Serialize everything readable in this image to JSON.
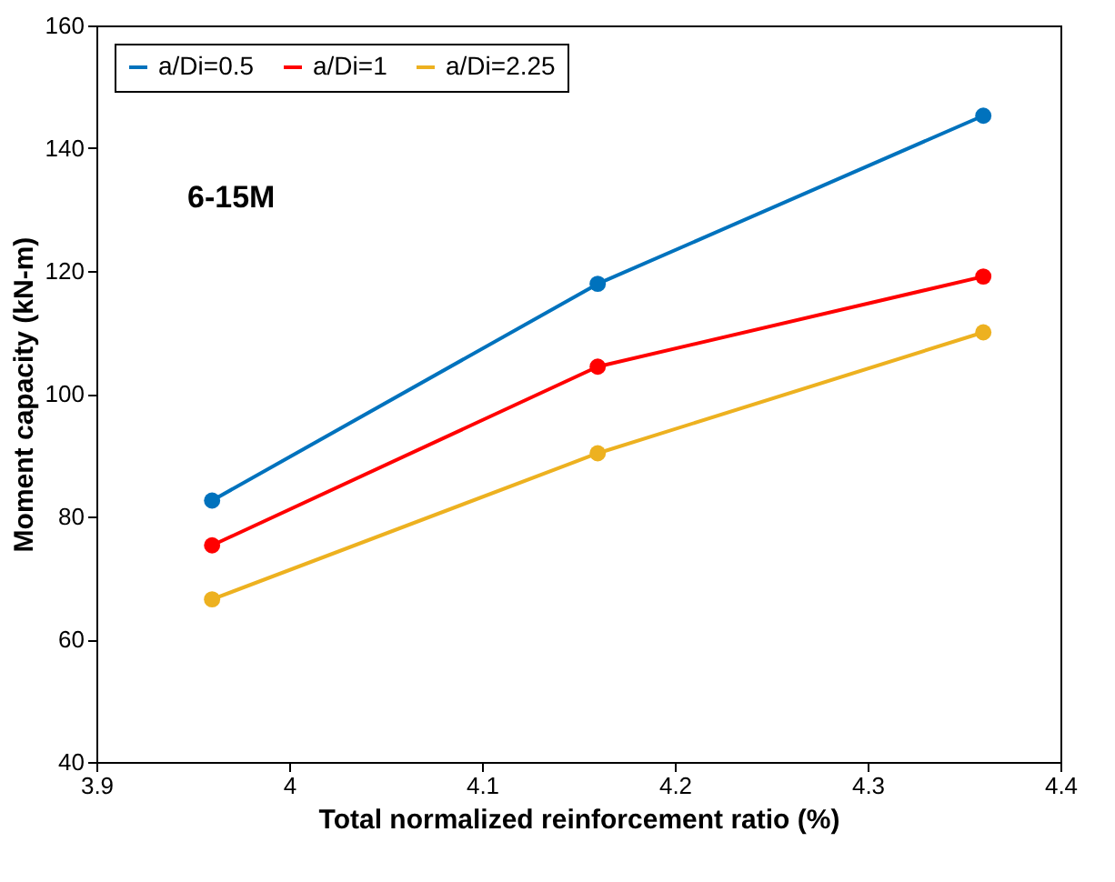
{
  "chart_data": {
    "type": "line",
    "xlabel": "Total normalized reinforcement ratio (%)",
    "ylabel": "Moment capacity (kN-m)",
    "x": [
      3.96,
      4.16,
      4.36
    ],
    "series": [
      {
        "name": "a/Di=0.5",
        "color": "#0072bd",
        "values": [
          82.6,
          117.9,
          145.3
        ]
      },
      {
        "name": "a/Di=1",
        "color": "#ff0000",
        "values": [
          75.3,
          104.4,
          119.1
        ]
      },
      {
        "name": "a/Di=2.25",
        "color": "#edb120",
        "values": [
          66.5,
          90.3,
          110
        ]
      }
    ],
    "xlim": [
      3.9,
      4.4
    ],
    "xticks": [
      3.9,
      4,
      4.1,
      4.2,
      4.3,
      4.4
    ],
    "ylim": [
      40,
      160
    ],
    "yticks": [
      40,
      60,
      80,
      100,
      120,
      140,
      160
    ],
    "annotations": [
      "6-15M"
    ],
    "grid": false,
    "legend": "top left",
    "marker": "circle",
    "line_style": "solid"
  }
}
